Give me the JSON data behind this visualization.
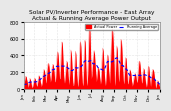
{
  "title": "Solar PV/Inverter Performance - East Array\nActual & Running Average Power Output",
  "title_fontsize": 4.2,
  "bg_color": "#e8e8e8",
  "plot_bg_color": "#ffffff",
  "grid_color": "#cccccc",
  "ylim": [
    0,
    800
  ],
  "yticks": [
    0,
    200,
    400,
    600,
    800
  ],
  "ylabel_fontsize": 3.5,
  "xlabel_fontsize": 3.0,
  "legend_labels": [
    "Actual Power",
    "Running Average"
  ],
  "legend_colors": [
    "#ff0000",
    "#0000ff"
  ],
  "area_color": "#ff0000",
  "avg_color": "#0000ff",
  "num_points": 300
}
